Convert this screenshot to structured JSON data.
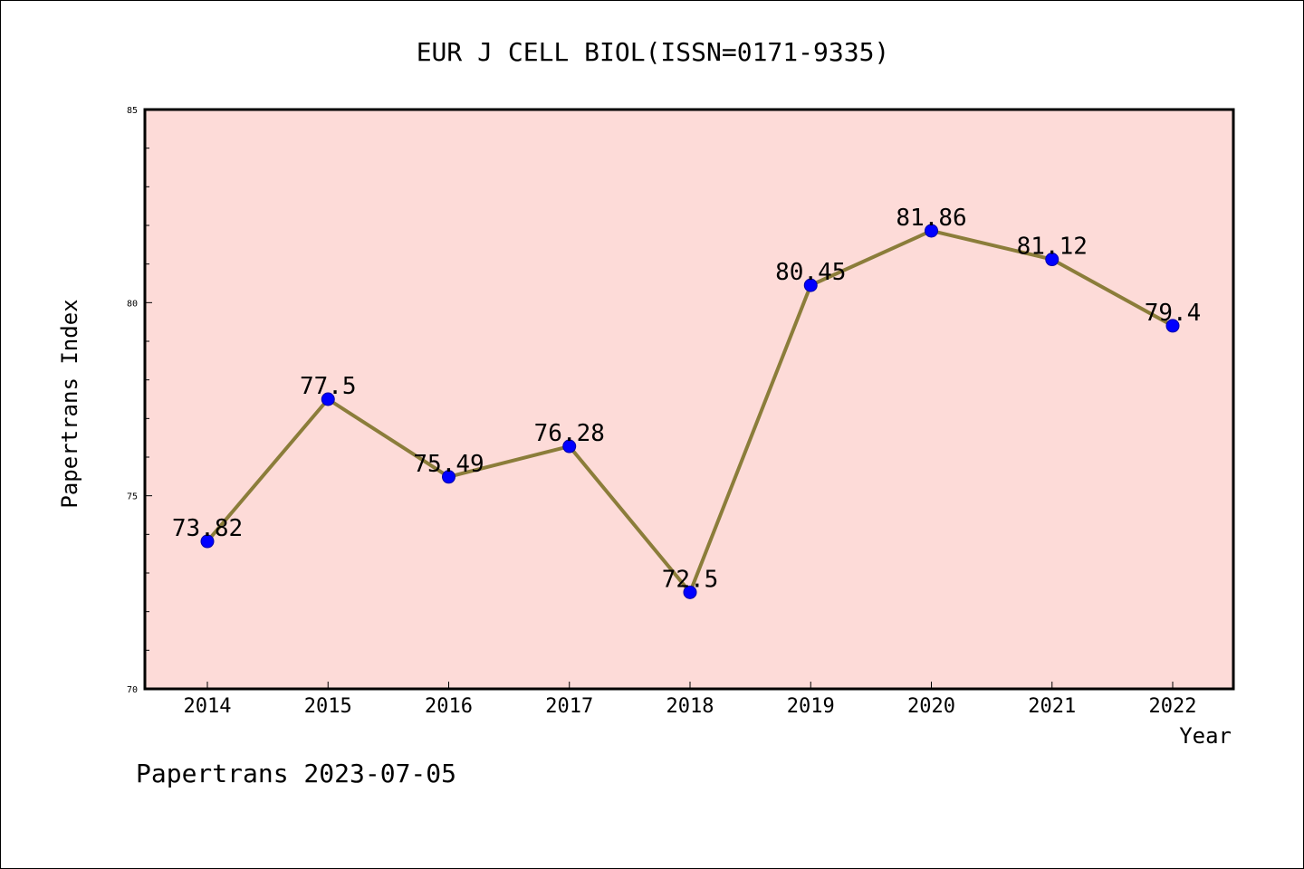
{
  "chart_data": {
    "type": "line",
    "title": "EUR J CELL BIOL(ISSN=0171-9335)",
    "xlabel": "Year",
    "ylabel": "Papertrans Index",
    "categories": [
      "2014",
      "2015",
      "2016",
      "2017",
      "2018",
      "2019",
      "2020",
      "2021",
      "2022"
    ],
    "series": [
      {
        "values": [
          73.82,
          77.5,
          75.49,
          76.28,
          72.5,
          80.45,
          81.86,
          81.12,
          79.4
        ],
        "labels": [
          "73.82",
          "77.5",
          "75.49",
          "76.28",
          "72.5",
          "80.45",
          "81.86",
          "81.12",
          "79.4"
        ],
        "line_color": "#8b7d3a",
        "marker_color": "#0000ff"
      }
    ],
    "ylim": [
      70,
      85
    ],
    "yticks": [
      "70",
      "75",
      "80",
      "85"
    ],
    "grid": false,
    "plot_background": "#fddbd8"
  },
  "footer": "Papertrans 2023-07-05"
}
